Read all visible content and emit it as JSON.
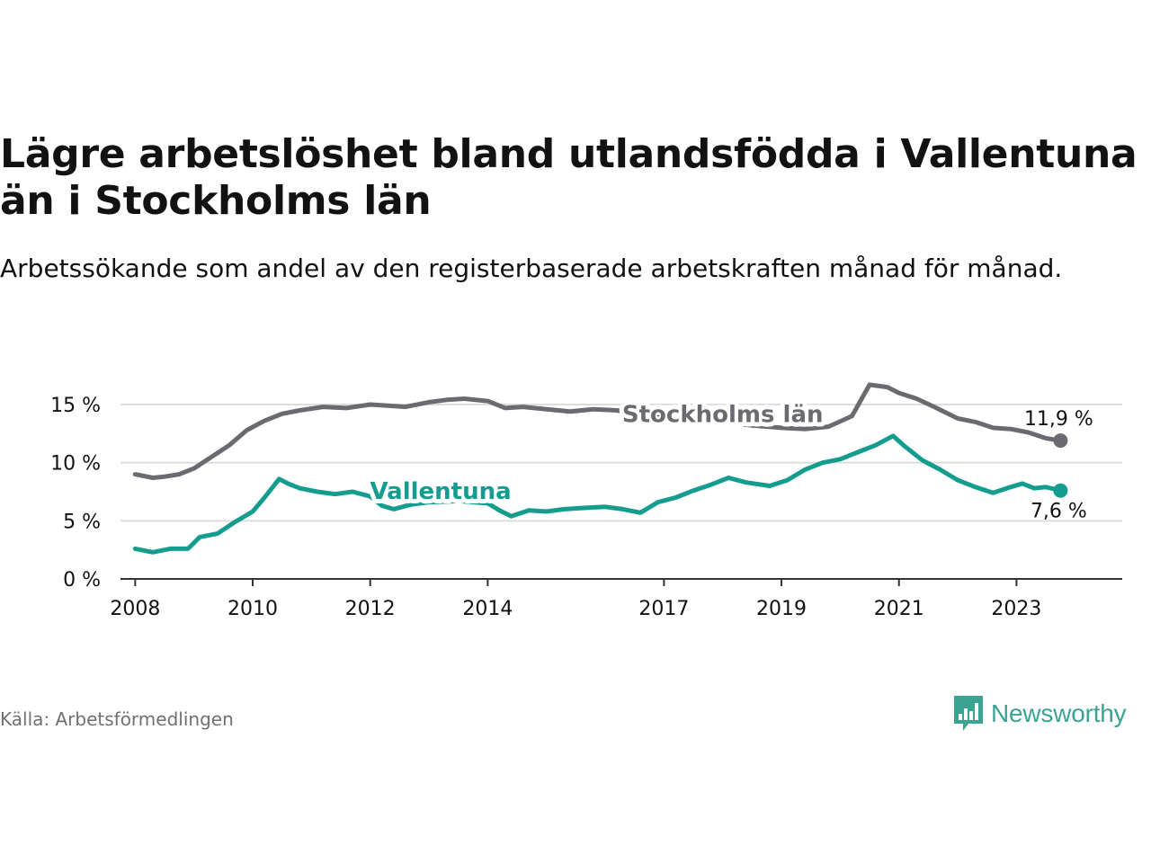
{
  "title": "Lägre arbetslöshet bland utlandsfödda i Vallentuna än i Stockholms län",
  "subtitle": "Arbetssökande som andel av den registerbaserade arbetskraften månad för månad.",
  "source": "Källa: Arbetsförmedlingen",
  "brand": "Newsworthy",
  "colors": {
    "stockholm": "#6b6a70",
    "vallentuna": "#149d8f",
    "grid": "#dddddd",
    "axis": "#333333",
    "brand": "#3aa392"
  },
  "chart_data": {
    "type": "line",
    "title": "Lägre arbetslöshet bland utlandsfödda i Vallentuna än i Stockholms län",
    "xlabel": "",
    "ylabel": "",
    "xlim": [
      2007.75,
      2024.8
    ],
    "ylim": [
      0,
      15
    ],
    "yticks": [
      0,
      5,
      10,
      15
    ],
    "ytick_labels": [
      "0 %",
      "5 %",
      "10 %",
      "15 %"
    ],
    "xticks": [
      2008,
      2010,
      2012,
      2014,
      2017,
      2019,
      2021,
      2023
    ],
    "xtick_labels": [
      "2008",
      "2010",
      "2012",
      "2014",
      "2017",
      "2019",
      "2021",
      "2023"
    ],
    "grid": true,
    "series": [
      {
        "name": "Stockholms län",
        "key": "stockholm",
        "end_label": "11,9 %",
        "points": [
          [
            2008.0,
            9.0
          ],
          [
            2008.3,
            8.7
          ],
          [
            2008.5,
            8.8
          ],
          [
            2008.75,
            9.0
          ],
          [
            2009.0,
            9.5
          ],
          [
            2009.3,
            10.5
          ],
          [
            2009.6,
            11.5
          ],
          [
            2009.9,
            12.8
          ],
          [
            2010.2,
            13.6
          ],
          [
            2010.5,
            14.2
          ],
          [
            2010.8,
            14.5
          ],
          [
            2011.2,
            14.8
          ],
          [
            2011.6,
            14.7
          ],
          [
            2012.0,
            15.0
          ],
          [
            2012.3,
            14.9
          ],
          [
            2012.6,
            14.8
          ],
          [
            2013.0,
            15.2
          ],
          [
            2013.3,
            15.4
          ],
          [
            2013.6,
            15.5
          ],
          [
            2014.0,
            15.3
          ],
          [
            2014.3,
            14.7
          ],
          [
            2014.6,
            14.8
          ],
          [
            2015.0,
            14.6
          ],
          [
            2015.4,
            14.4
          ],
          [
            2015.8,
            14.6
          ],
          [
            2016.2,
            14.5
          ],
          [
            2016.6,
            14.1
          ],
          [
            2017.0,
            13.9
          ],
          [
            2017.5,
            13.8
          ],
          [
            2018.0,
            13.5
          ],
          [
            2018.5,
            13.2
          ],
          [
            2019.0,
            13.0
          ],
          [
            2019.4,
            12.9
          ],
          [
            2019.8,
            13.1
          ],
          [
            2020.2,
            14.0
          ],
          [
            2020.5,
            16.7
          ],
          [
            2020.8,
            16.5
          ],
          [
            2021.0,
            16.0
          ],
          [
            2021.3,
            15.5
          ],
          [
            2021.6,
            14.8
          ],
          [
            2022.0,
            13.8
          ],
          [
            2022.3,
            13.5
          ],
          [
            2022.6,
            13.0
          ],
          [
            2022.9,
            12.9
          ],
          [
            2023.2,
            12.6
          ],
          [
            2023.5,
            12.1
          ],
          [
            2023.75,
            11.9
          ]
        ]
      },
      {
        "name": "Vallentuna",
        "key": "vallentuna",
        "end_label": "7,6 %",
        "points": [
          [
            2008.0,
            2.6
          ],
          [
            2008.3,
            2.3
          ],
          [
            2008.6,
            2.6
          ],
          [
            2008.9,
            2.6
          ],
          [
            2009.1,
            3.6
          ],
          [
            2009.4,
            3.9
          ],
          [
            2009.7,
            4.9
          ],
          [
            2010.0,
            5.8
          ],
          [
            2010.2,
            7.0
          ],
          [
            2010.45,
            8.6
          ],
          [
            2010.6,
            8.2
          ],
          [
            2010.8,
            7.8
          ],
          [
            2011.1,
            7.5
          ],
          [
            2011.4,
            7.3
          ],
          [
            2011.7,
            7.5
          ],
          [
            2012.0,
            7.1
          ],
          [
            2012.2,
            6.3
          ],
          [
            2012.4,
            6.0
          ],
          [
            2012.7,
            6.4
          ],
          [
            2013.0,
            6.6
          ],
          [
            2013.5,
            6.7
          ],
          [
            2014.0,
            6.5
          ],
          [
            2014.2,
            5.9
          ],
          [
            2014.4,
            5.4
          ],
          [
            2014.7,
            5.9
          ],
          [
            2015.0,
            5.8
          ],
          [
            2015.3,
            6.0
          ],
          [
            2015.6,
            6.1
          ],
          [
            2016.0,
            6.2
          ],
          [
            2016.3,
            6.0
          ],
          [
            2016.6,
            5.7
          ],
          [
            2016.9,
            6.6
          ],
          [
            2017.2,
            7.0
          ],
          [
            2017.5,
            7.6
          ],
          [
            2017.8,
            8.1
          ],
          [
            2018.1,
            8.7
          ],
          [
            2018.4,
            8.3
          ],
          [
            2018.8,
            8.0
          ],
          [
            2019.1,
            8.5
          ],
          [
            2019.4,
            9.4
          ],
          [
            2019.7,
            10.0
          ],
          [
            2020.0,
            10.3
          ],
          [
            2020.3,
            10.9
          ],
          [
            2020.6,
            11.5
          ],
          [
            2020.9,
            12.3
          ],
          [
            2021.1,
            11.4
          ],
          [
            2021.4,
            10.2
          ],
          [
            2021.7,
            9.4
          ],
          [
            2022.0,
            8.5
          ],
          [
            2022.3,
            7.9
          ],
          [
            2022.6,
            7.4
          ],
          [
            2022.9,
            7.9
          ],
          [
            2023.1,
            8.2
          ],
          [
            2023.3,
            7.8
          ],
          [
            2023.5,
            7.9
          ],
          [
            2023.75,
            7.6
          ]
        ]
      }
    ]
  }
}
